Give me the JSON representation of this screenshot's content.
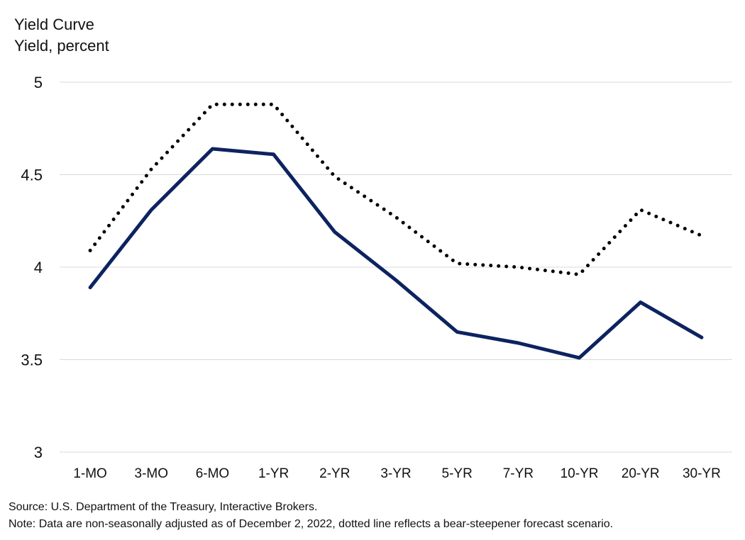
{
  "chart_data": {
    "type": "line",
    "title": "Yield Curve",
    "ylabel": "Yield, percent",
    "categories": [
      "1-MO",
      "3-MO",
      "6-MO",
      "1-YR",
      "2-YR",
      "3-YR",
      "5-YR",
      "7-YR",
      "10-YR",
      "20-YR",
      "30-YR"
    ],
    "ylim": [
      3,
      5
    ],
    "yticks": [
      3,
      3.5,
      4,
      4.5,
      5
    ],
    "grid": true,
    "series": [
      {
        "style": "solid",
        "color": "#0d2360",
        "values": [
          3.89,
          4.31,
          4.64,
          4.61,
          4.19,
          3.93,
          3.65,
          3.59,
          3.51,
          3.81,
          3.62
        ]
      },
      {
        "style": "dotted",
        "color": "#000000",
        "values": [
          4.09,
          4.53,
          4.88,
          4.88,
          4.49,
          4.27,
          4.02,
          4.0,
          3.96,
          4.31,
          4.17
        ]
      }
    ]
  },
  "footer": {
    "source": "Source: U.S. Department of the Treasury, Interactive Brokers.",
    "note": "Note: Data are non-seasonally adjusted as of December 2, 2022, dotted line reflects a bear-steepener forecast scenario."
  }
}
